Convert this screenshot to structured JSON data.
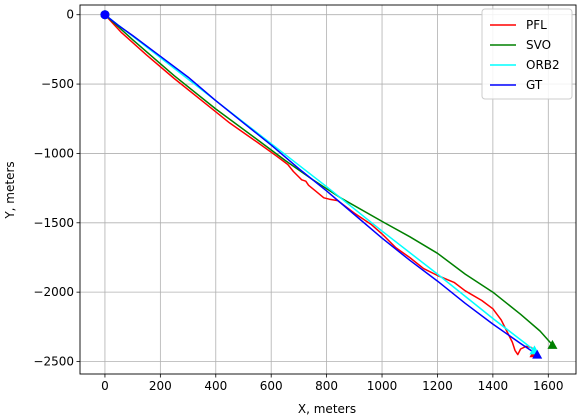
{
  "chart_data": {
    "type": "line",
    "title": "",
    "xlabel": "X, meters",
    "ylabel": "Y, meters",
    "xlim": [
      -90,
      1700
    ],
    "ylim": [
      -2590,
      70
    ],
    "xticks": [
      0,
      200,
      400,
      600,
      800,
      1000,
      1200,
      1400,
      1600
    ],
    "yticks": [
      0,
      -500,
      -1000,
      -1500,
      -2000,
      -2500
    ],
    "xtick_labels": [
      "0",
      "200",
      "400",
      "600",
      "800",
      "1000",
      "1200",
      "1400",
      "1600"
    ],
    "ytick_labels": [
      "0",
      "−500",
      "−1000",
      "−1500",
      "−2000",
      "−2500"
    ],
    "grid": true,
    "legend_position": "top-right",
    "series": [
      {
        "name": "PFL",
        "color": "#ff0000",
        "start_marker": "circle",
        "end_marker": "triangle",
        "x": [
          0,
          60,
          150,
          250,
          350,
          450,
          550,
          620,
          660,
          680,
          700,
          710,
          725,
          735,
          760,
          790,
          810,
          840,
          900,
          960,
          1000,
          1050,
          1100,
          1150,
          1200,
          1260,
          1300,
          1360,
          1400,
          1430,
          1450,
          1470,
          1480,
          1490,
          1500,
          1520,
          1540,
          1550
        ],
        "y": [
          0,
          -130,
          -290,
          -460,
          -620,
          -780,
          -920,
          -1020,
          -1080,
          -1130,
          -1170,
          -1190,
          -1200,
          -1230,
          -1270,
          -1320,
          -1330,
          -1340,
          -1430,
          -1510,
          -1580,
          -1680,
          -1750,
          -1830,
          -1880,
          -1930,
          -1990,
          -2060,
          -2120,
          -2200,
          -2280,
          -2360,
          -2420,
          -2450,
          -2410,
          -2390,
          -2400,
          -2440
        ]
      },
      {
        "name": "SVO",
        "color": "#008000",
        "start_marker": "circle",
        "end_marker": "triangle",
        "x": [
          0,
          100,
          250,
          400,
          550,
          650,
          750,
          850,
          1000,
          1100,
          1200,
          1300,
          1400,
          1500,
          1570,
          1615
        ],
        "y": [
          0,
          -180,
          -440,
          -680,
          -900,
          -1050,
          -1190,
          -1320,
          -1490,
          -1600,
          -1720,
          -1870,
          -2000,
          -2160,
          -2280,
          -2380
        ]
      },
      {
        "name": "ORB2",
        "color": "#00ffff",
        "start_marker": "circle",
        "end_marker": "triangle",
        "x": [
          0,
          200,
          400,
          600,
          800,
          1000,
          1200,
          1400,
          1550
        ],
        "y": [
          0,
          -310,
          -620,
          -930,
          -1240,
          -1560,
          -1870,
          -2190,
          -2420
        ]
      },
      {
        "name": "GT",
        "color": "#0000ff",
        "start_marker": "circle",
        "end_marker": "triangle",
        "x": [
          0,
          50,
          100,
          200,
          300,
          400,
          500,
          600,
          700,
          800,
          900,
          1000,
          1100,
          1200,
          1300,
          1400,
          1500,
          1560
        ],
        "y": [
          0,
          -80,
          -150,
          -300,
          -450,
          -620,
          -780,
          -940,
          -1110,
          -1270,
          -1440,
          -1610,
          -1770,
          -1920,
          -2080,
          -2230,
          -2370,
          -2450
        ]
      }
    ]
  }
}
